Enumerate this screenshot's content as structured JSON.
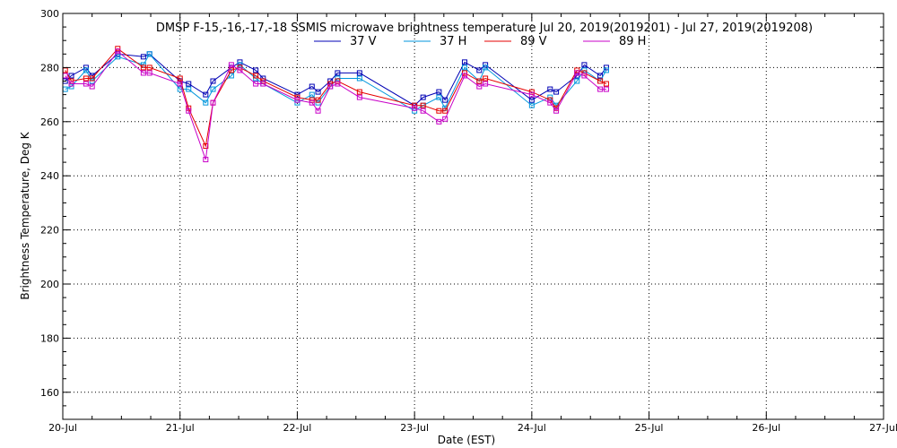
{
  "chart_data": {
    "type": "line",
    "title": "DMSP F-15,-16,-17,-18 SSMIS microwave brightness temperature Jul 20, 2019(2019201) - Jul 27, 2019(2019208)",
    "xlabel": "Date (EST)",
    "ylabel": "Brightness Temperature, Deg K",
    "x_ticks": [
      "20-Jul",
      "21-Jul",
      "22-Jul",
      "23-Jul",
      "24-Jul",
      "25-Jul",
      "26-Jul",
      "27-Jul"
    ],
    "xlim": [
      "2019-07-20T00:00",
      "2019-07-27T00:00"
    ],
    "ylim": [
      150,
      300
    ],
    "y_ticks": [
      160,
      180,
      200,
      220,
      240,
      260,
      280,
      300
    ],
    "grid": true,
    "legend_position": "top-center",
    "series": [
      {
        "name": "37 V",
        "color": "#0000b4",
        "points": [
          [
            "2019-07-20T00:30",
            275
          ],
          [
            "2019-07-20T01:45",
            277
          ],
          [
            "2019-07-20T04:45",
            280
          ],
          [
            "2019-07-20T06:00",
            277
          ],
          [
            "2019-07-20T11:15",
            285
          ],
          [
            "2019-07-20T16:30",
            284
          ],
          [
            "2019-07-20T17:45",
            285
          ],
          [
            "2019-07-21T00:00",
            275
          ],
          [
            "2019-07-21T01:45",
            274
          ],
          [
            "2019-07-21T05:15",
            270
          ],
          [
            "2019-07-21T06:45",
            275
          ],
          [
            "2019-07-21T10:30",
            280
          ],
          [
            "2019-07-21T12:15",
            282
          ],
          [
            "2019-07-21T15:30",
            279
          ],
          [
            "2019-07-21T17:00",
            276
          ],
          [
            "2019-07-22T00:00",
            270
          ],
          [
            "2019-07-22T03:00",
            273
          ],
          [
            "2019-07-22T04:15",
            271
          ],
          [
            "2019-07-22T06:45",
            275
          ],
          [
            "2019-07-22T08:15",
            278
          ],
          [
            "2019-07-22T12:45",
            278
          ],
          [
            "2019-07-23T00:00",
            266
          ],
          [
            "2019-07-23T01:45",
            269
          ],
          [
            "2019-07-23T05:00",
            271
          ],
          [
            "2019-07-23T06:15",
            268
          ],
          [
            "2019-07-23T10:15",
            282
          ],
          [
            "2019-07-23T13:15",
            279
          ],
          [
            "2019-07-23T14:30",
            281
          ],
          [
            "2019-07-24T00:00",
            268
          ],
          [
            "2019-07-24T03:45",
            272
          ],
          [
            "2019-07-24T05:00",
            271
          ],
          [
            "2019-07-24T09:15",
            277
          ],
          [
            "2019-07-24T10:45",
            281
          ],
          [
            "2019-07-24T14:00",
            277
          ],
          [
            "2019-07-24T15:15",
            280
          ]
        ]
      },
      {
        "name": "37 H",
        "color": "#0096dc",
        "points": [
          [
            "2019-07-20T00:30",
            272
          ],
          [
            "2019-07-20T01:45",
            273
          ],
          [
            "2019-07-20T04:45",
            279
          ],
          [
            "2019-07-20T06:00",
            275
          ],
          [
            "2019-07-20T11:15",
            284
          ],
          [
            "2019-07-20T16:30",
            281
          ],
          [
            "2019-07-20T17:45",
            285
          ],
          [
            "2019-07-21T00:00",
            272
          ],
          [
            "2019-07-21T01:45",
            272
          ],
          [
            "2019-07-21T05:15",
            267
          ],
          [
            "2019-07-21T06:45",
            272
          ],
          [
            "2019-07-21T10:30",
            277
          ],
          [
            "2019-07-21T12:15",
            281
          ],
          [
            "2019-07-21T15:30",
            276
          ],
          [
            "2019-07-21T17:00",
            274
          ],
          [
            "2019-07-22T00:00",
            267
          ],
          [
            "2019-07-22T03:00",
            270
          ],
          [
            "2019-07-22T04:15",
            267
          ],
          [
            "2019-07-22T06:45",
            273
          ],
          [
            "2019-07-22T08:15",
            276
          ],
          [
            "2019-07-22T12:45",
            276
          ],
          [
            "2019-07-23T00:00",
            264
          ],
          [
            "2019-07-23T01:45",
            266
          ],
          [
            "2019-07-23T05:00",
            269
          ],
          [
            "2019-07-23T06:15",
            265
          ],
          [
            "2019-07-23T10:15",
            280
          ],
          [
            "2019-07-23T13:15",
            275
          ],
          [
            "2019-07-23T14:30",
            280
          ],
          [
            "2019-07-24T00:00",
            266
          ],
          [
            "2019-07-24T03:45",
            269
          ],
          [
            "2019-07-24T05:00",
            266
          ],
          [
            "2019-07-24T09:15",
            275
          ],
          [
            "2019-07-24T10:45",
            279
          ],
          [
            "2019-07-24T14:00",
            275
          ],
          [
            "2019-07-24T15:15",
            279
          ]
        ]
      },
      {
        "name": "89 V",
        "color": "#e60000",
        "points": [
          [
            "2019-07-20T00:30",
            279
          ],
          [
            "2019-07-20T01:45",
            275
          ],
          [
            "2019-07-20T04:45",
            276
          ],
          [
            "2019-07-20T06:00",
            276
          ],
          [
            "2019-07-20T11:15",
            287
          ],
          [
            "2019-07-20T16:30",
            280
          ],
          [
            "2019-07-20T17:45",
            280
          ],
          [
            "2019-07-21T00:00",
            276
          ],
          [
            "2019-07-21T01:45",
            265
          ],
          [
            "2019-07-21T05:15",
            251
          ],
          [
            "2019-07-21T06:45",
            267
          ],
          [
            "2019-07-21T10:30",
            279
          ],
          [
            "2019-07-21T12:15",
            280
          ],
          [
            "2019-07-21T15:30",
            277
          ],
          [
            "2019-07-21T17:00",
            275
          ],
          [
            "2019-07-22T00:00",
            269
          ],
          [
            "2019-07-22T03:00",
            268
          ],
          [
            "2019-07-22T04:15",
            268
          ],
          [
            "2019-07-22T06:45",
            274
          ],
          [
            "2019-07-22T08:15",
            275
          ],
          [
            "2019-07-22T12:45",
            271
          ],
          [
            "2019-07-23T00:00",
            266
          ],
          [
            "2019-07-23T01:45",
            266
          ],
          [
            "2019-07-23T05:00",
            264
          ],
          [
            "2019-07-23T06:15",
            264
          ],
          [
            "2019-07-23T10:15",
            278
          ],
          [
            "2019-07-23T13:15",
            275
          ],
          [
            "2019-07-23T14:30",
            276
          ],
          [
            "2019-07-24T00:00",
            271
          ],
          [
            "2019-07-24T03:45",
            268
          ],
          [
            "2019-07-24T05:00",
            265
          ],
          [
            "2019-07-24T09:15",
            279
          ],
          [
            "2019-07-24T10:45",
            278
          ],
          [
            "2019-07-24T14:00",
            275
          ],
          [
            "2019-07-24T15:15",
            274
          ]
        ]
      },
      {
        "name": "89 H",
        "color": "#c800c8",
        "points": [
          [
            "2019-07-20T00:30",
            277
          ],
          [
            "2019-07-20T01:45",
            274
          ],
          [
            "2019-07-20T04:45",
            274
          ],
          [
            "2019-07-20T06:00",
            273
          ],
          [
            "2019-07-20T11:15",
            286
          ],
          [
            "2019-07-20T16:30",
            278
          ],
          [
            "2019-07-20T17:45",
            278
          ],
          [
            "2019-07-21T00:00",
            274
          ],
          [
            "2019-07-21T01:45",
            264
          ],
          [
            "2019-07-21T05:15",
            246
          ],
          [
            "2019-07-21T06:45",
            267
          ],
          [
            "2019-07-21T10:30",
            281
          ],
          [
            "2019-07-21T12:15",
            279
          ],
          [
            "2019-07-21T15:30",
            274
          ],
          [
            "2019-07-21T17:00",
            274
          ],
          [
            "2019-07-22T00:00",
            268
          ],
          [
            "2019-07-22T03:00",
            267
          ],
          [
            "2019-07-22T04:15",
            264
          ],
          [
            "2019-07-22T06:45",
            273
          ],
          [
            "2019-07-22T08:15",
            274
          ],
          [
            "2019-07-22T12:45",
            269
          ],
          [
            "2019-07-23T00:00",
            265
          ],
          [
            "2019-07-23T01:45",
            264
          ],
          [
            "2019-07-23T05:00",
            260
          ],
          [
            "2019-07-23T06:15",
            261
          ],
          [
            "2019-07-23T10:15",
            277
          ],
          [
            "2019-07-23T13:15",
            273
          ],
          [
            "2019-07-23T14:30",
            274
          ],
          [
            "2019-07-24T00:00",
            270
          ],
          [
            "2019-07-24T03:45",
            267
          ],
          [
            "2019-07-24T05:00",
            264
          ],
          [
            "2019-07-24T09:15",
            278
          ],
          [
            "2019-07-24T10:45",
            277
          ],
          [
            "2019-07-24T14:00",
            272
          ],
          [
            "2019-07-24T15:15",
            272
          ]
        ]
      }
    ]
  }
}
